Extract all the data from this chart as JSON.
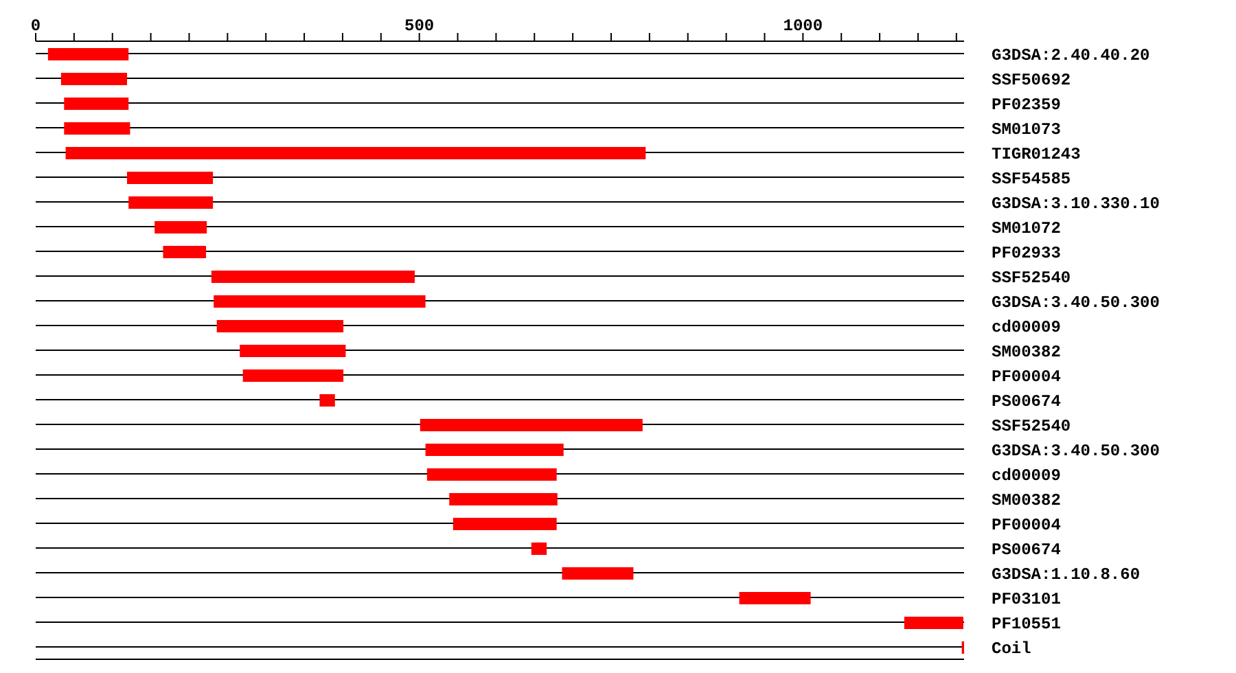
{
  "chart_data": {
    "type": "bar",
    "orientation": "horizontal",
    "categories": [
      "G3DSA:2.40.40.20",
      "SSF50692",
      "PF02359",
      "SM01073",
      "TIGR01243",
      "SSF54585",
      "G3DSA:3.10.330.10",
      "SM01072",
      "PF02933",
      "SSF52540",
      "G3DSA:3.40.50.300",
      "cd00009",
      "SM00382",
      "PF00004",
      "PS00674",
      "SSF52540",
      "G3DSA:3.40.50.300",
      "cd00009",
      "SM00382",
      "PF00004",
      "PS00674",
      "G3DSA:1.10.8.60",
      "PF03101",
      "PF10551",
      "Coil"
    ],
    "base": [
      16,
      33,
      37,
      37,
      39,
      119,
      121,
      155,
      166,
      229,
      232,
      236,
      266,
      270,
      370,
      501,
      508,
      510,
      539,
      544,
      646,
      686,
      917,
      1132,
      1207
    ],
    "values": [
      105,
      86,
      84,
      86,
      756,
      112,
      110,
      68,
      56,
      265,
      276,
      165,
      138,
      131,
      20,
      290,
      180,
      169,
      141,
      135,
      20,
      93,
      93,
      77,
      4
    ],
    "color": "#ff0000",
    "xlim": [
      0,
      1210
    ],
    "xticks": [
      0,
      {
        "value": 50,
        "label": null
      },
      {
        "value": 100,
        "label": null
      },
      {
        "value": 150,
        "label": null
      },
      {
        "value": 200,
        "label": null
      },
      {
        "value": 250,
        "label": null
      },
      {
        "value": 300,
        "label": null
      },
      {
        "value": 350,
        "label": null
      },
      {
        "value": 400,
        "label": null
      },
      {
        "value": 450,
        "label": null
      },
      500,
      {
        "value": 550,
        "label": null
      },
      {
        "value": 600,
        "label": null
      },
      {
        "value": 650,
        "label": null
      },
      {
        "value": 700,
        "label": null
      },
      {
        "value": 750,
        "label": null
      },
      {
        "value": 800,
        "label": null
      },
      {
        "value": 850,
        "label": null
      },
      {
        "value": 900,
        "label": null
      },
      {
        "value": 950,
        "label": null
      },
      1000,
      {
        "value": 1050,
        "label": null
      },
      {
        "value": 1100,
        "label": null
      },
      {
        "value": 1150,
        "label": null
      },
      {
        "value": 1200,
        "label": null
      }
    ],
    "grid": "y"
  }
}
